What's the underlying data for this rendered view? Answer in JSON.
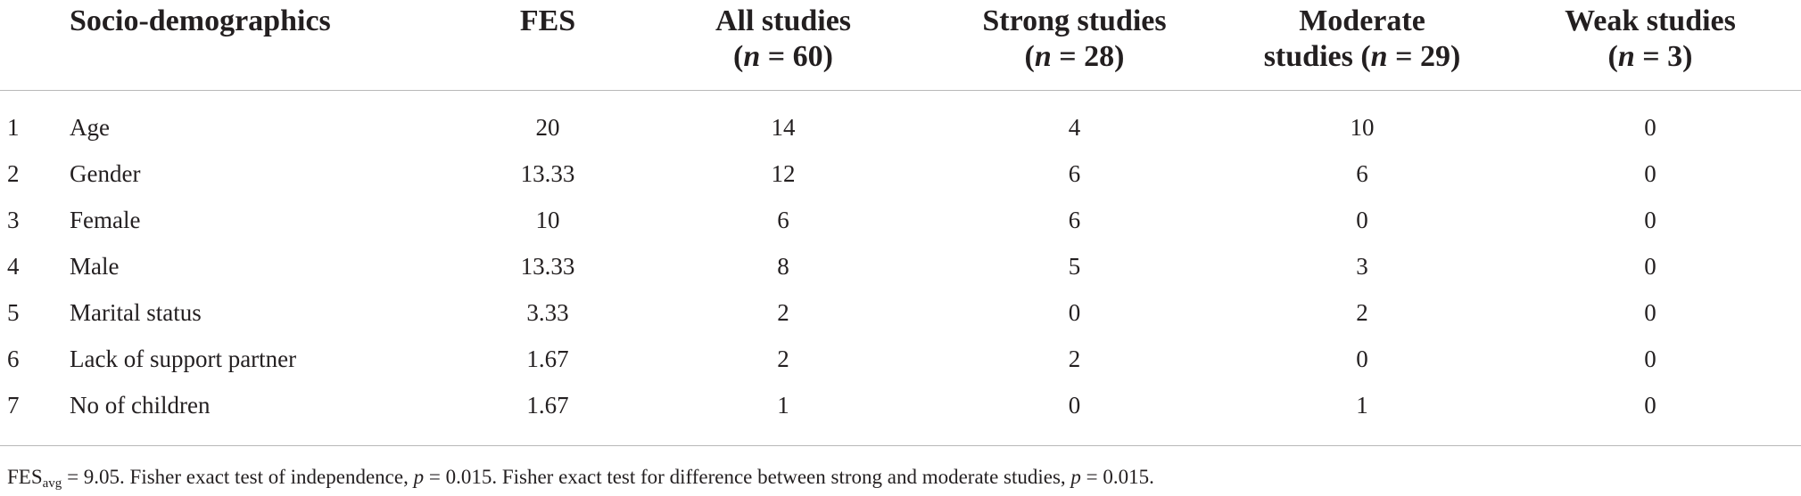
{
  "table": {
    "headers": [
      {
        "line1": "",
        "line2": ""
      },
      {
        "line1": "Socio-demographics",
        "line2": ""
      },
      {
        "line1": "FES",
        "line2": ""
      },
      {
        "line1": "All studies",
        "line2_pre": "(",
        "line2_n": "n",
        "line2_post": " = 60)"
      },
      {
        "line1": "Strong studies",
        "line2_pre": "(",
        "line2_n": "n",
        "line2_post": " = 28)"
      },
      {
        "line1": "Moderate",
        "line2_pre": "studies (",
        "line2_n": "n",
        "line2_post": " = 29)"
      },
      {
        "line1": "Weak studies",
        "line2_pre": "(",
        "line2_n": "n",
        "line2_post": " = 3)"
      }
    ],
    "rows": [
      {
        "num": "1",
        "label": "Age",
        "fes": "20",
        "all": "14",
        "strong": "4",
        "moderate": "10",
        "weak": "0"
      },
      {
        "num": "2",
        "label": "Gender",
        "fes": "13.33",
        "all": "12",
        "strong": "6",
        "moderate": "6",
        "weak": "0"
      },
      {
        "num": "3",
        "label": "Female",
        "fes": "10",
        "all": "6",
        "strong": "6",
        "moderate": "0",
        "weak": "0"
      },
      {
        "num": "4",
        "label": "Male",
        "fes": "13.33",
        "all": "8",
        "strong": "5",
        "moderate": "3",
        "weak": "0"
      },
      {
        "num": "5",
        "label": "Marital status",
        "fes": "3.33",
        "all": "2",
        "strong": "0",
        "moderate": "2",
        "weak": "0"
      },
      {
        "num": "6",
        "label": "Lack of support partner",
        "fes": "1.67",
        "all": "2",
        "strong": "2",
        "moderate": "0",
        "weak": "0"
      },
      {
        "num": "7",
        "label": "No of children",
        "fes": "1.67",
        "all": "1",
        "strong": "0",
        "moderate": "1",
        "weak": "0"
      }
    ]
  },
  "footnote": {
    "fes_base": "FES",
    "fes_sub": "avg",
    "part1": " = 9.05. Fisher exact test of independence, ",
    "p1_var": "p",
    "part2": " = 0.015. Fisher exact test for difference between strong and moderate studies, ",
    "p2_var": "p",
    "part3": " = 0.015."
  }
}
